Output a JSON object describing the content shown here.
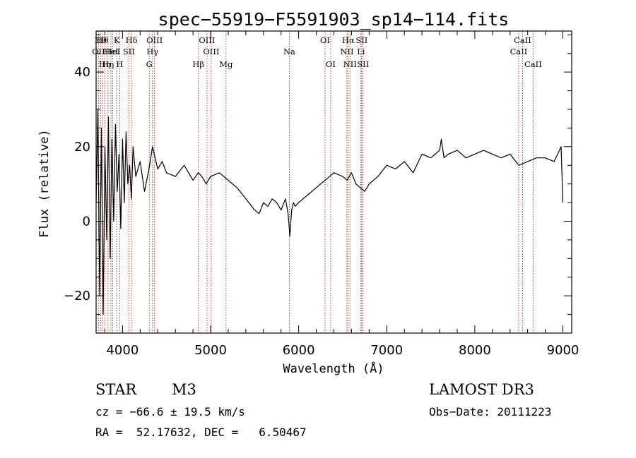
{
  "chart_data": {
    "type": "line",
    "title": "spec−55919−F5591903_sp14−114.fits",
    "xlabel": "Wavelength (Å)",
    "ylabel": "Flux (relative)",
    "xlim": [
      3700,
      9100
    ],
    "ylim": [
      -30,
      51
    ],
    "xticks": [
      4000,
      5000,
      6000,
      7000,
      8000,
      9000
    ],
    "yticks": [
      -20,
      0,
      20,
      40
    ],
    "series": [
      {
        "name": "flux",
        "x": [
          3700,
          3720,
          3740,
          3760,
          3780,
          3800,
          3820,
          3840,
          3860,
          3880,
          3900,
          3920,
          3940,
          3960,
          3980,
          4000,
          4020,
          4040,
          4060,
          4080,
          4100,
          4120,
          4150,
          4200,
          4250,
          4300,
          4340,
          4400,
          4450,
          4500,
          4600,
          4700,
          4800,
          4860,
          4900,
          4950,
          5000,
          5100,
          5200,
          5300,
          5400,
          5500,
          5550,
          5600,
          5650,
          5700,
          5750,
          5800,
          5850,
          5880,
          5900,
          5920,
          5940,
          5960,
          6000,
          6100,
          6200,
          6300,
          6400,
          6500,
          6550,
          6600,
          6650,
          6700,
          6750,
          6800,
          6900,
          7000,
          7100,
          7200,
          7300,
          7400,
          7500,
          7600,
          7620,
          7650,
          7700,
          7800,
          7900,
          8000,
          8100,
          8200,
          8300,
          8400,
          8500,
          8600,
          8700,
          8800,
          8900,
          8960,
          8980,
          9000
        ],
        "y": [
          5,
          30,
          -20,
          25,
          -25,
          20,
          -5,
          28,
          -10,
          22,
          0,
          26,
          8,
          18,
          -2,
          22,
          5,
          24,
          10,
          15,
          6,
          20,
          12,
          16,
          8,
          14,
          20,
          14,
          16,
          13,
          12,
          15,
          11,
          13,
          12,
          10,
          12,
          13,
          11,
          9,
          6,
          3,
          2,
          5,
          4,
          6,
          5,
          3,
          6,
          2,
          -4,
          3,
          5,
          4,
          5,
          7,
          9,
          11,
          13,
          12,
          11,
          13,
          10,
          9,
          8,
          10,
          12,
          15,
          14,
          16,
          13,
          18,
          17,
          19,
          22,
          17,
          18,
          19,
          17,
          18,
          19,
          18,
          17,
          18,
          15,
          16,
          17,
          17,
          16,
          19,
          20,
          5
        ]
      }
    ],
    "lines": [
      {
        "x": 3727,
        "label": "OII",
        "row": 2
      },
      {
        "x": 3750,
        "label": "Hθ",
        "row": 1
      },
      {
        "x": 3771,
        "label": "Hθ",
        "row": 1
      },
      {
        "x": 3798,
        "label": "Hη",
        "row": 3
      },
      {
        "x": 3835,
        "label": "Hη",
        "row": 3
      },
      {
        "x": 3869,
        "label": "HeI",
        "row": 2
      },
      {
        "x": 3889,
        "label": "HeI",
        "row": 2
      },
      {
        "x": 3934,
        "label": "K",
        "row": 1
      },
      {
        "x": 3968,
        "label": "H",
        "row": 3
      },
      {
        "x": 4072,
        "label": "SII",
        "row": 2
      },
      {
        "x": 4102,
        "label": "Hδ",
        "row": 1
      },
      {
        "x": 4304,
        "label": "G",
        "row": 3
      },
      {
        "x": 4340,
        "label": "Hγ",
        "row": 2
      },
      {
        "x": 4363,
        "label": "OIII",
        "row": 1
      },
      {
        "x": 4861,
        "label": "Hβ",
        "row": 3
      },
      {
        "x": 4959,
        "label": "OIII",
        "row": 1
      },
      {
        "x": 5007,
        "label": "OIII",
        "row": 2
      },
      {
        "x": 5175,
        "label": "Mg",
        "row": 3
      },
      {
        "x": 5894,
        "label": "Na",
        "row": 2
      },
      {
        "x": 6300,
        "label": "OI",
        "row": 1
      },
      {
        "x": 6363,
        "label": "OI",
        "row": 3
      },
      {
        "x": 6548,
        "label": "NII",
        "row": 2
      },
      {
        "x": 6563,
        "label": "Hα",
        "row": 1
      },
      {
        "x": 6583,
        "label": "NII",
        "row": 3
      },
      {
        "x": 6707,
        "label": "Li",
        "row": 2
      },
      {
        "x": 6716,
        "label": "SII",
        "row": 1
      },
      {
        "x": 6731,
        "label": "SII",
        "row": 3
      },
      {
        "x": 8498,
        "label": "CaII",
        "row": 2
      },
      {
        "x": 8542,
        "label": "CaII",
        "row": 1
      },
      {
        "x": 8662,
        "label": "CaII",
        "row": 3
      }
    ]
  },
  "info": {
    "class": "STAR",
    "subclass": "M3",
    "survey": "LAMOST DR3",
    "cz": "cz = −66.6 ± 19.5 km/s",
    "obsdate": "Obs−Date: 20111223",
    "coords": "RA =  52.17632, DEC =   6.50467"
  }
}
